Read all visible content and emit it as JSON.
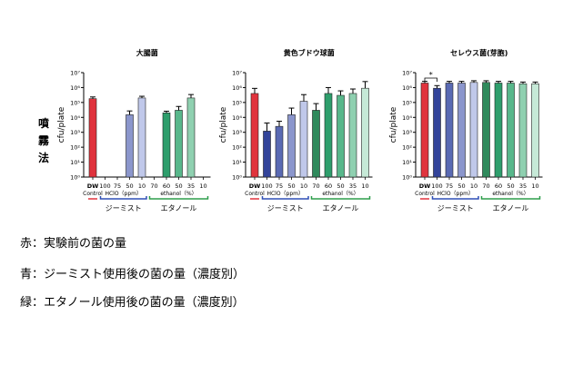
{
  "method_label": [
    "噴",
    "霧",
    "法"
  ],
  "y_axis_label": "cfu/plate",
  "y_ticks": [
    "10⁰",
    "10¹",
    "10²",
    "10³",
    "10⁴",
    "10⁵",
    "10⁶",
    "10⁷"
  ],
  "x_tick_labels": [
    "DW",
    "100",
    "75",
    "50",
    "10",
    "70",
    "60",
    "50",
    "35",
    "10"
  ],
  "groups": {
    "control": "Control",
    "hclo": "HClO（ppm）",
    "ethanol": "ethanol（%）",
    "gmist": "ジーミスト",
    "ethanol_jp": "エタノール"
  },
  "colors": [
    "#e0333d",
    "#33449a",
    "#5a6ab3",
    "#8b96cc",
    "#c0c8ea",
    "#2f8a5c",
    "#2e9e6c",
    "#58b78b",
    "#8fd0b0",
    "#c6e9d7"
  ],
  "significance": "*",
  "chart_data": [
    {
      "type": "bar",
      "title": "大腸菌",
      "ylabel": "cfu/plate",
      "yscale": "log",
      "ylim": [
        1,
        10000000
      ],
      "categories": [
        "DW",
        "100",
        "75",
        "50",
        "10",
        "70",
        "60",
        "50",
        "35",
        "10"
      ],
      "values": [
        180000,
        null,
        null,
        15000,
        200000,
        null,
        20000,
        30000,
        200000,
        null
      ],
      "errors": [
        1.3,
        null,
        null,
        1.8,
        1.3,
        null,
        1.3,
        1.8,
        1.7,
        null
      ]
    },
    {
      "type": "bar",
      "title": "黄色ブドウ球菌",
      "ylabel": "cfu/plate",
      "yscale": "log",
      "ylim": [
        1,
        10000000
      ],
      "categories": [
        "DW",
        "100",
        "75",
        "50",
        "10",
        "70",
        "60",
        "50",
        "35",
        "10"
      ],
      "values": [
        400000,
        1200,
        2500,
        15000,
        120000,
        30000,
        400000,
        300000,
        400000,
        900000
      ],
      "errors": [
        2.2,
        3.5,
        2.2,
        2.8,
        2.8,
        2.8,
        2.5,
        2.0,
        2.0,
        2.8
      ]
    },
    {
      "type": "bar",
      "title": "セレウス菌(芽胞)",
      "ylabel": "cfu/plate",
      "yscale": "log",
      "ylim": [
        1,
        10000000
      ],
      "categories": [
        "DW",
        "100",
        "75",
        "50",
        "10",
        "70",
        "60",
        "50",
        "35",
        "10"
      ],
      "values": [
        2000000,
        900000,
        2000000,
        2000000,
        2200000,
        2200000,
        2000000,
        2000000,
        1800000,
        1800000
      ],
      "errors": [
        1.3,
        1.5,
        1.3,
        1.3,
        1.3,
        1.3,
        1.3,
        1.3,
        1.3,
        1.3
      ]
    }
  ],
  "captions": [
    "赤：実験前の菌の量",
    "青：ジーミスト使用後の菌の量（濃度別）",
    "緑：エタノール使用後の菌の量（濃度別）"
  ]
}
